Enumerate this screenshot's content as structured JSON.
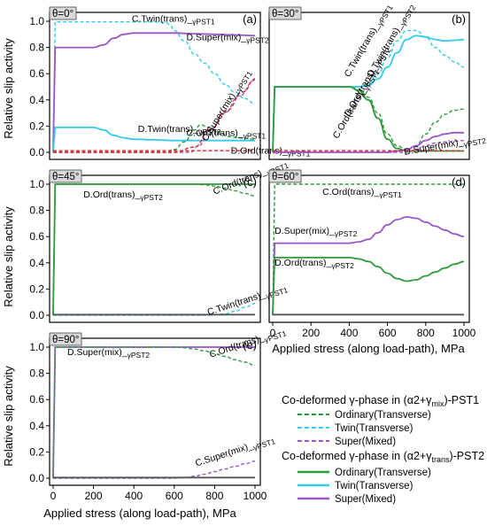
{
  "x_axis_label": "Applied stress (along load-path), MPa",
  "y_axis_label": "Relative slip activity",
  "legend": {
    "pst1_title_prefix": "Co-deformed γ-phase in (α2+γ",
    "pst1_title_sub": "mix",
    "pst1_title_suffix": ")-PST1",
    "pst2_title_prefix": "Co-deformed γ-phase in (α2+γ",
    "pst2_title_sub": "trans",
    "pst2_title_suffix": ")-PST2",
    "items": [
      "Ordinary(Transverse)",
      "Twin(Transverse)",
      "Super(Mixed)"
    ]
  },
  "colors": {
    "ordinary": "#2e9a3a",
    "twin": "#33ccee",
    "super": "#9a55c8",
    "red": "#dd2222",
    "gray": "#555555"
  },
  "chart_data": [
    {
      "type": "line",
      "panel": "(a)",
      "theta": "θ=0°",
      "xlim": [
        0,
        1000
      ],
      "ylim": [
        0,
        1.0
      ],
      "yticks": [
        "0.0",
        "0.2",
        "0.4",
        "0.6",
        "0.8",
        "1.0"
      ],
      "xticks": [],
      "annotations": [
        {
          "main": "C.Twin(trans)_",
          "sub": "γPST1",
          "x": 390,
          "y": 0.995
        },
        {
          "main": "D.Super(mix)_",
          "sub": "γPST2",
          "x": 660,
          "y": 0.855
        },
        {
          "main": "C.Super(mix)_",
          "sub": "γPST1",
          "x": 760,
          "y": 0.08,
          "angle": -58
        },
        {
          "main": "D.Twin(trans)_",
          "sub": "γPST2",
          "x": 420,
          "y": 0.155
        },
        {
          "main": "C.Ord(trans)_",
          "sub": "γPST1",
          "x": 660,
          "y": 0.125
        },
        {
          "main": "D.Ord(trans)_",
          "sub": "γPST1",
          "x": 880,
          "y": -0.01
        }
      ],
      "series": [
        {
          "name": "C.Twin(trans)_γPST1",
          "color": "twin",
          "dash": true,
          "x": [
            0,
            10,
            300,
            500,
            560,
            580,
            600,
            650,
            700,
            750,
            800,
            850,
            900,
            950,
            1000
          ],
          "y": [
            0,
            0.995,
            0.995,
            0.995,
            0.99,
            0.97,
            0.93,
            0.85,
            0.75,
            0.68,
            0.6,
            0.52,
            0.46,
            0.41,
            0.37
          ]
        },
        {
          "name": "D.Super(mix)_γPST2",
          "color": "super",
          "dash": false,
          "x": [
            0,
            10,
            100,
            200,
            250,
            300,
            350,
            400,
            500,
            600,
            700,
            800,
            900,
            1000
          ],
          "y": [
            0,
            0.8,
            0.8,
            0.8,
            0.82,
            0.87,
            0.9,
            0.91,
            0.91,
            0.91,
            0.905,
            0.9,
            0.895,
            0.89
          ]
        },
        {
          "name": "D.Twin(trans)_γPST2",
          "color": "twin",
          "dash": false,
          "x": [
            0,
            10,
            100,
            200,
            250,
            300,
            350,
            400,
            500,
            600,
            700,
            800,
            900,
            1000
          ],
          "y": [
            0,
            0.19,
            0.19,
            0.19,
            0.17,
            0.13,
            0.11,
            0.1,
            0.095,
            0.09,
            0.09,
            0.09,
            0.09,
            0.09
          ]
        },
        {
          "name": "C.Ord(trans)_γPST1",
          "color": "ordinary",
          "dash": true,
          "x": [
            0,
            550,
            600,
            650,
            700,
            730,
            770,
            820,
            870,
            920,
            1000
          ],
          "y": [
            0,
            0,
            0.02,
            0.08,
            0.17,
            0.21,
            0.19,
            0.15,
            0.12,
            0.11,
            0.1
          ]
        },
        {
          "name": "C.Super(mix)_γPST1",
          "color": "super",
          "dash": true,
          "x": [
            0,
            680,
            720,
            780,
            850,
            920,
            1000
          ],
          "y": [
            0,
            0,
            0.05,
            0.17,
            0.3,
            0.43,
            0.55
          ]
        },
        {
          "name": "red-dash",
          "color": "red",
          "dash": true,
          "x": [
            0,
            600,
            700,
            780,
            860,
            940,
            1000
          ],
          "y": [
            0,
            0,
            0.04,
            0.18,
            0.32,
            0.46,
            0.56
          ]
        },
        {
          "name": "red-baseline",
          "color": "red",
          "dash": true,
          "x": [
            0,
            1000
          ],
          "y": [
            0.012,
            0.012
          ]
        }
      ]
    },
    {
      "type": "line",
      "panel": "(b)",
      "theta": "θ=30°",
      "xlim": [
        0,
        1000
      ],
      "ylim": [
        0,
        1.0
      ],
      "yticks": [],
      "xticks": [],
      "annotations": [
        {
          "main": "C.Twin(trans)_",
          "sub": "γPST1",
          "x": 400,
          "y": 0.57,
          "angle": -60
        },
        {
          "main": "D.Twin(trans)_",
          "sub": "γPST2",
          "x": 520,
          "y": 0.57,
          "angle": -60
        },
        {
          "main": "D.Ord(trans)_",
          "sub": "γPST2",
          "x": 400,
          "y": 0.27,
          "angle": -60
        },
        {
          "main": "C.Ord(trans)_",
          "sub": "γPST1",
          "x": 340,
          "y": 0.1,
          "angle": -60
        },
        {
          "main": "D.Super(mix)_",
          "sub": "γPST2",
          "x": 690,
          "y": -0.02,
          "angle": -10
        }
      ],
      "series": [
        {
          "name": "C.Twin(trans)_γPST1",
          "color": "twin",
          "dash": true,
          "x": [
            0,
            10,
            300,
            400,
            450,
            500,
            550,
            600,
            650,
            700,
            750,
            800,
            850,
            900,
            950,
            1000
          ],
          "y": [
            0,
            0.5,
            0.5,
            0.5,
            0.5,
            0.52,
            0.6,
            0.72,
            0.85,
            0.93,
            0.93,
            0.88,
            0.8,
            0.74,
            0.69,
            0.65
          ]
        },
        {
          "name": "D.Twin(trans)_γPST2",
          "color": "twin",
          "dash": false,
          "x": [
            0,
            10,
            300,
            400,
            450,
            500,
            550,
            600,
            650,
            700,
            750,
            800,
            850,
            900,
            950,
            1000
          ],
          "y": [
            0,
            0.5,
            0.5,
            0.5,
            0.5,
            0.51,
            0.56,
            0.65,
            0.76,
            0.86,
            0.89,
            0.88,
            0.86,
            0.85,
            0.855,
            0.86
          ]
        },
        {
          "name": "C.Ord(trans)_γPST1",
          "color": "ordinary",
          "dash": true,
          "x": [
            0,
            10,
            300,
            400,
            450,
            500,
            550,
            600,
            650,
            700,
            750,
            800,
            850,
            900,
            950,
            1000
          ],
          "y": [
            0,
            0.5,
            0.5,
            0.5,
            0.48,
            0.42,
            0.3,
            0.14,
            0.05,
            0.02,
            0.05,
            0.14,
            0.23,
            0.29,
            0.32,
            0.33
          ]
        },
        {
          "name": "D.Ord(trans)_γPST2",
          "color": "ordinary",
          "dash": false,
          "x": [
            0,
            10,
            300,
            400,
            450,
            500,
            550,
            600,
            650,
            700,
            750,
            800,
            850,
            900,
            950,
            1000
          ],
          "y": [
            0,
            0.5,
            0.5,
            0.5,
            0.47,
            0.4,
            0.26,
            0.1,
            0.03,
            0.01,
            0.01,
            0.01,
            0.01,
            0.01,
            0.01,
            0.01
          ]
        },
        {
          "name": "D.Super(mix)_γPST2",
          "color": "super",
          "dash": false,
          "x": [
            0,
            600,
            650,
            700,
            750,
            800,
            850,
            900,
            950,
            1000
          ],
          "y": [
            0,
            0,
            0.01,
            0.02,
            0.05,
            0.09,
            0.12,
            0.14,
            0.15,
            0.15
          ]
        },
        {
          "name": "C.Super(mix)_γPST1",
          "color": "super",
          "dash": true,
          "x": [
            0,
            700,
            750,
            800,
            850,
            900,
            1000
          ],
          "y": [
            0,
            0,
            0.02,
            0.05,
            0.07,
            0.08,
            0.09
          ]
        },
        {
          "name": "red-baseline",
          "color": "red",
          "dash": true,
          "x": [
            0,
            1000
          ],
          "y": [
            0.012,
            0.012
          ]
        }
      ]
    },
    {
      "type": "line",
      "panel": "(c)",
      "theta": "θ=45°",
      "xlim": [
        0,
        1000
      ],
      "ylim": [
        0,
        1.0
      ],
      "yticks": [
        "0.0",
        "0.2",
        "0.4",
        "0.6",
        "0.8",
        "1.0"
      ],
      "xticks": [],
      "annotations": [
        {
          "main": "D.Ord(trans)_",
          "sub": "γPST2",
          "x": 150,
          "y": 0.9
        },
        {
          "main": "C.Ord(trans)_",
          "sub": "γPST1",
          "x": 800,
          "y": 0.92,
          "angle": -22
        },
        {
          "main": "C.Twin(trans)_",
          "sub": "γPST1",
          "x": 770,
          "y": 0.0,
          "angle": -18
        }
      ],
      "series": [
        {
          "name": "D.Ord(trans)_γPST2",
          "color": "ordinary",
          "dash": false,
          "x": [
            0,
            10,
            800,
            1000
          ],
          "y": [
            0,
            1.0,
            1.0,
            1.0
          ]
        },
        {
          "name": "C.Ord(trans)_γPST1",
          "color": "ordinary",
          "dash": true,
          "x": [
            0,
            10,
            700,
            750,
            800,
            850,
            900,
            950,
            1000
          ],
          "y": [
            0,
            1.0,
            1.0,
            0.995,
            0.985,
            0.97,
            0.95,
            0.93,
            0.91
          ]
        },
        {
          "name": "C.Twin(trans)_γPST1",
          "color": "twin",
          "dash": true,
          "x": [
            0,
            780,
            850,
            900,
            950,
            1000
          ],
          "y": [
            0,
            0,
            0.01,
            0.03,
            0.06,
            0.09
          ]
        },
        {
          "name": "gray-baseline",
          "color": "gray",
          "dash": false,
          "x": [
            0,
            1000
          ],
          "y": [
            0.005,
            0.005
          ]
        }
      ]
    },
    {
      "type": "line",
      "panel": "(d)",
      "theta": "θ=60°",
      "xlim": [
        0,
        1000
      ],
      "ylim": [
        0,
        1.0
      ],
      "yticks": [],
      "xticks": [
        "0",
        "200",
        "400",
        "600",
        "800",
        "1000"
      ],
      "annotations": [
        {
          "main": "C.Ord(trans)_",
          "sub": "γPST1",
          "x": 260,
          "y": 0.92
        },
        {
          "main": "D.Super(mix)_",
          "sub": "γPST2",
          "x": 10,
          "y": 0.62
        },
        {
          "main": "D.Ord(trans)_",
          "sub": "γPST2",
          "x": 10,
          "y": 0.38
        }
      ],
      "series": [
        {
          "name": "C.Ord(trans)_γPST1",
          "color": "ordinary",
          "dash": true,
          "x": [
            0,
            10,
            1000
          ],
          "y": [
            0,
            1.0,
            1.0
          ]
        },
        {
          "name": "D.Super(mix)_γPST2",
          "color": "super",
          "dash": false,
          "x": [
            0,
            10,
            200,
            400,
            450,
            500,
            550,
            600,
            650,
            700,
            750,
            800,
            850,
            900,
            950,
            1000
          ],
          "y": [
            0,
            0.55,
            0.55,
            0.55,
            0.56,
            0.58,
            0.63,
            0.69,
            0.73,
            0.75,
            0.74,
            0.71,
            0.68,
            0.65,
            0.62,
            0.6
          ]
        },
        {
          "name": "D.Ord(trans)_γPST2",
          "color": "ordinary",
          "dash": false,
          "x": [
            0,
            10,
            200,
            400,
            450,
            500,
            550,
            600,
            650,
            700,
            750,
            800,
            850,
            900,
            950,
            1000
          ],
          "y": [
            0,
            0.44,
            0.44,
            0.44,
            0.43,
            0.41,
            0.37,
            0.32,
            0.28,
            0.26,
            0.27,
            0.3,
            0.33,
            0.36,
            0.39,
            0.41
          ]
        },
        {
          "name": "gray-baseline",
          "color": "gray",
          "dash": false,
          "x": [
            0,
            1000
          ],
          "y": [
            0.005,
            0.005
          ]
        }
      ]
    },
    {
      "type": "line",
      "panel": "(e)",
      "theta": "θ=90°",
      "xlim": [
        0,
        1000
      ],
      "ylim": [
        0,
        1.0
      ],
      "yticks": [
        "0.0",
        "0.2",
        "0.4",
        "0.6",
        "0.8",
        "1.0"
      ],
      "xticks": [
        "0",
        "200",
        "400",
        "600",
        "800",
        "1000"
      ],
      "annotations": [
        {
          "main": "D.Super(mix)_",
          "sub": "γPST2",
          "x": 70,
          "y": 0.94
        },
        {
          "main": "C.Ord(trans)_",
          "sub": "γPST1",
          "x": 780,
          "y": 0.92,
          "angle": -18
        },
        {
          "main": "C.Super(mix)_",
          "sub": "γPST1",
          "x": 710,
          "y": 0.09,
          "angle": -18
        }
      ],
      "series": [
        {
          "name": "D.Super(mix)_γPST2",
          "color": "super",
          "dash": false,
          "x": [
            0,
            10,
            1000
          ],
          "y": [
            0,
            1.0,
            1.0
          ]
        },
        {
          "name": "C.Ord(trans)_γPST1",
          "color": "ordinary",
          "dash": true,
          "x": [
            0,
            10,
            600,
            650,
            700,
            750,
            800,
            850,
            900,
            950,
            1000
          ],
          "y": [
            0,
            1.0,
            1.0,
            0.995,
            0.985,
            0.97,
            0.95,
            0.93,
            0.905,
            0.885,
            0.86
          ]
        },
        {
          "name": "C.Super(mix)_γPST1",
          "color": "super",
          "dash": true,
          "x": [
            0,
            600,
            650,
            700,
            750,
            800,
            850,
            900,
            950,
            1000
          ],
          "y": [
            0,
            0,
            0.005,
            0.015,
            0.03,
            0.05,
            0.07,
            0.09,
            0.11,
            0.13
          ]
        },
        {
          "name": "gray-baseline",
          "color": "gray",
          "dash": false,
          "x": [
            0,
            1000
          ],
          "y": [
            0.005,
            0.005
          ]
        }
      ]
    }
  ]
}
